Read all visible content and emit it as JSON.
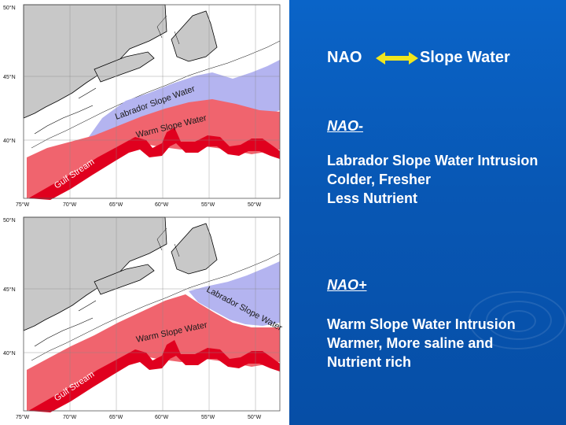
{
  "maps": [
    {
      "lat_labels": [
        "50°N",
        "45°N",
        "40°N"
      ],
      "lon_labels": [
        "75°W",
        "70°W",
        "65°W",
        "60°W",
        "55°W",
        "50°W"
      ],
      "labrador_label": "Labrador Slope Water",
      "warm_label": "Warm Slope Water",
      "gulf_label": "Gulf Stream"
    },
    {
      "lat_labels": [
        "50°N",
        "45°N",
        "40°N"
      ],
      "lon_labels": [
        "75°W",
        "70°W",
        "65°W",
        "60°W",
        "55°W",
        "50°W"
      ],
      "labrador_label": "Labrador Slope Water",
      "warm_label": "Warm Slope Water",
      "gulf_label": "Gulf Stream"
    }
  ],
  "header": {
    "left": "NAO",
    "right": "Slope Water"
  },
  "nao_minus": {
    "title": "NAO-",
    "lines": [
      "Labrador Slope Water Intrusion",
      "Colder, Fresher",
      "Less Nutrient"
    ]
  },
  "nao_plus": {
    "title": "NAO+",
    "lines": [
      "Warm Slope Water Intrusion",
      "Warmer, More saline and",
      "Nutrient rich"
    ]
  },
  "colors": {
    "background": "#0a64c8",
    "land": "#c8c8c8",
    "labrador_slope_water": "#b4b4f0",
    "warm_slope_water": "#f0646e",
    "gulf_stream": "#e0001e",
    "arrow": "#f0e61e"
  }
}
